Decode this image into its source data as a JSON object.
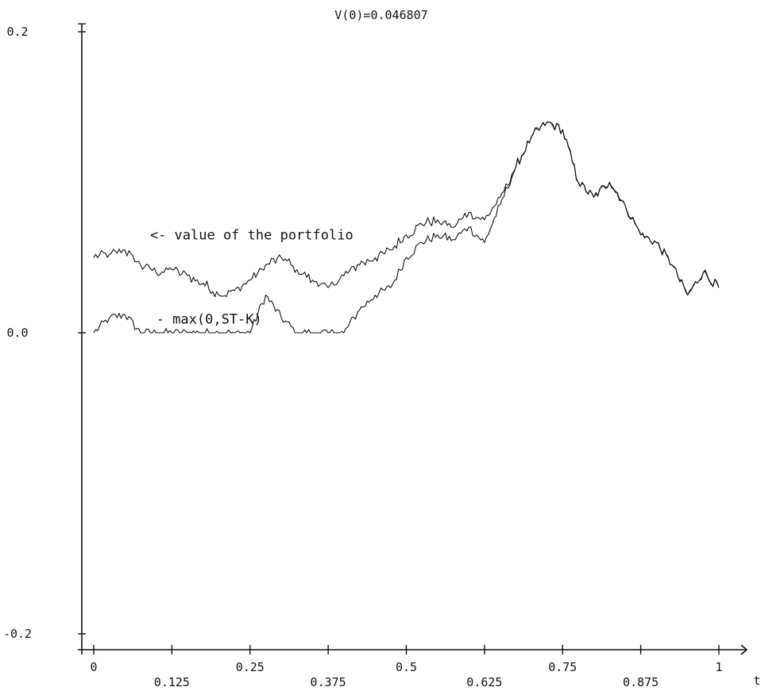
{
  "chart_data": {
    "type": "line",
    "title": "V(0)=0.046807",
    "xlabel": "t",
    "ylabel": "",
    "xlim": [
      0,
      1
    ],
    "ylim": [
      -0.2,
      0.2
    ],
    "x_ticks_upper": [
      "0",
      "0.25",
      "0.5",
      "0.75",
      "1"
    ],
    "x_ticks_lower": [
      "0.125",
      "0.375",
      "0.625",
      "0.875"
    ],
    "y_ticks": [
      "0.2",
      "0.0",
      "-0.2"
    ],
    "annotations": [
      {
        "text": "<- value of the portfolio",
        "x": 0.09,
        "y": 0.062
      },
      {
        "text": "- max(0,ST-K)",
        "x": 0.1,
        "y": 0.006
      }
    ],
    "series": [
      {
        "x": [
          0,
          0.025,
          0.05,
          0.075,
          0.1,
          0.125,
          0.15,
          0.175,
          0.2,
          0.225,
          0.25,
          0.275,
          0.3,
          0.325,
          0.35,
          0.375,
          0.4,
          0.425,
          0.45,
          0.475,
          0.5,
          0.525,
          0.55,
          0.575,
          0.6,
          0.625,
          0.65,
          0.675,
          0.7,
          0.725,
          0.75,
          0.775,
          0.8,
          0.825,
          0.85,
          0.875,
          0.9,
          0.925,
          0.95,
          0.975,
          1.0
        ],
        "values": [
          0.05,
          0.052,
          0.055,
          0.045,
          0.04,
          0.042,
          0.038,
          0.033,
          0.025,
          0.028,
          0.035,
          0.045,
          0.05,
          0.042,
          0.035,
          0.03,
          0.038,
          0.045,
          0.05,
          0.055,
          0.065,
          0.072,
          0.075,
          0.07,
          0.08,
          0.075,
          0.09,
          0.11,
          0.13,
          0.14,
          0.135,
          0.1,
          0.09,
          0.1,
          0.085,
          0.065,
          0.06,
          0.045,
          0.025,
          0.04,
          0.03
        ]
      },
      {
        "x": [
          0,
          0.025,
          0.05,
          0.075,
          0.1,
          0.125,
          0.15,
          0.175,
          0.2,
          0.225,
          0.25,
          0.275,
          0.3,
          0.325,
          0.35,
          0.375,
          0.4,
          0.425,
          0.45,
          0.475,
          0.5,
          0.525,
          0.55,
          0.575,
          0.6,
          0.625,
          0.65,
          0.675,
          0.7,
          0.725,
          0.75,
          0.775,
          0.8,
          0.825,
          0.85,
          0.875,
          0.9,
          0.925,
          0.95,
          0.975,
          1.0
        ],
        "values": [
          0.0,
          0.01,
          0.012,
          0.0,
          0.0,
          0.0,
          0.0,
          0.0,
          0.0,
          0.0,
          0.0,
          0.025,
          0.01,
          0.0,
          0.0,
          0.0,
          0.0,
          0.015,
          0.025,
          0.03,
          0.05,
          0.06,
          0.065,
          0.062,
          0.07,
          0.06,
          0.085,
          0.11,
          0.13,
          0.14,
          0.135,
          0.1,
          0.09,
          0.1,
          0.085,
          0.065,
          0.06,
          0.045,
          0.025,
          0.04,
          0.03
        ]
      }
    ]
  }
}
